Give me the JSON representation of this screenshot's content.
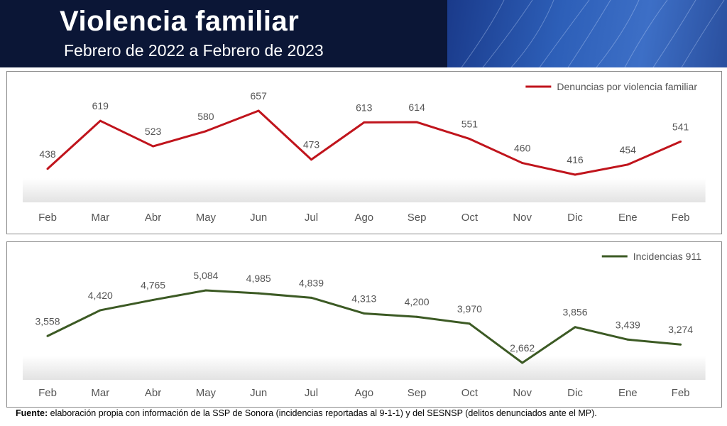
{
  "header": {
    "title": "Violencia familiar",
    "subtitle": "Febrero de 2022 a Febrero de 2023"
  },
  "footer": {
    "label": "Fuente:",
    "text": " elaboración propia con información de la SSP de Sonora (incidencias reportadas al 9-1-1) y del SESNSP (delitos denunciados ante el MP)."
  },
  "colors": {
    "header_bg": "#0b1636",
    "series1": "#c0141c",
    "series2": "#3c5a24",
    "label_text": "#555555"
  },
  "chart_data": [
    {
      "type": "line",
      "categories": [
        "Feb",
        "Mar",
        "Abr",
        "May",
        "Jun",
        "Jul",
        "Ago",
        "Sep",
        "Oct",
        "Nov",
        "Dic",
        "Ene",
        "Feb"
      ],
      "series": [
        {
          "name": "Denuncias por violencia familiar",
          "values": [
            438,
            619,
            523,
            580,
            657,
            473,
            613,
            614,
            551,
            460,
            416,
            454,
            541
          ],
          "labels": [
            "438",
            "619",
            "523",
            "580",
            "657",
            "473",
            "613",
            "614",
            "551",
            "460",
            "416",
            "454",
            "541"
          ],
          "color": "#c0141c"
        }
      ],
      "legend": "top-right",
      "grid": false,
      "ylim": [
        300,
        750
      ]
    },
    {
      "type": "line",
      "categories": [
        "Feb",
        "Mar",
        "Abr",
        "May",
        "Jun",
        "Jul",
        "Ago",
        "Sep",
        "Oct",
        "Nov",
        "Dic",
        "Ene",
        "Feb"
      ],
      "series": [
        {
          "name": "Incidencias 911",
          "values": [
            3558,
            4420,
            4765,
            5084,
            4985,
            4839,
            4313,
            4200,
            3970,
            2662,
            3856,
            3439,
            3274
          ],
          "labels": [
            "3,558",
            "4,420",
            "4,765",
            "5,084",
            "4,985",
            "4,839",
            "4,313",
            "4,200",
            "3,970",
            "2,662",
            "3,856",
            "3,439",
            "3,274"
          ],
          "color": "#3c5a24"
        }
      ],
      "legend": "top-right",
      "grid": false,
      "ylim": [
        2000,
        6000
      ]
    }
  ]
}
